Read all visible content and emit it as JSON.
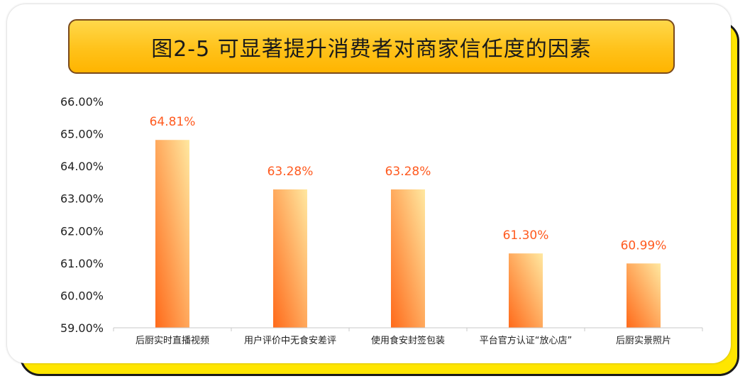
{
  "colors": {
    "bar_top": "#ffe8a0",
    "bar_bottom": "#ff6a1a",
    "value_label": "#ff5a1f",
    "frame_yellow": "#ffe600"
  },
  "chart_data": {
    "type": "bar",
    "title": "图2-5 可显著提升消费者对商家信任度的因素",
    "xlabel": "",
    "ylabel": "",
    "ylim": [
      59,
      66
    ],
    "yticks": [
      "59.00%",
      "60.00%",
      "61.00%",
      "62.00%",
      "63.00%",
      "64.00%",
      "65.00%",
      "66.00%"
    ],
    "categories": [
      "后厨实时直播视频",
      "用户评价中无食安差评",
      "使用食安封签包装",
      "平台官方认证“放心店”",
      "后厨实景照片"
    ],
    "values": [
      64.81,
      63.28,
      63.28,
      61.3,
      60.99
    ],
    "value_labels": [
      "64.81%",
      "63.28%",
      "63.28%",
      "61.30%",
      "60.99%"
    ],
    "grid": false,
    "legend": "none"
  }
}
